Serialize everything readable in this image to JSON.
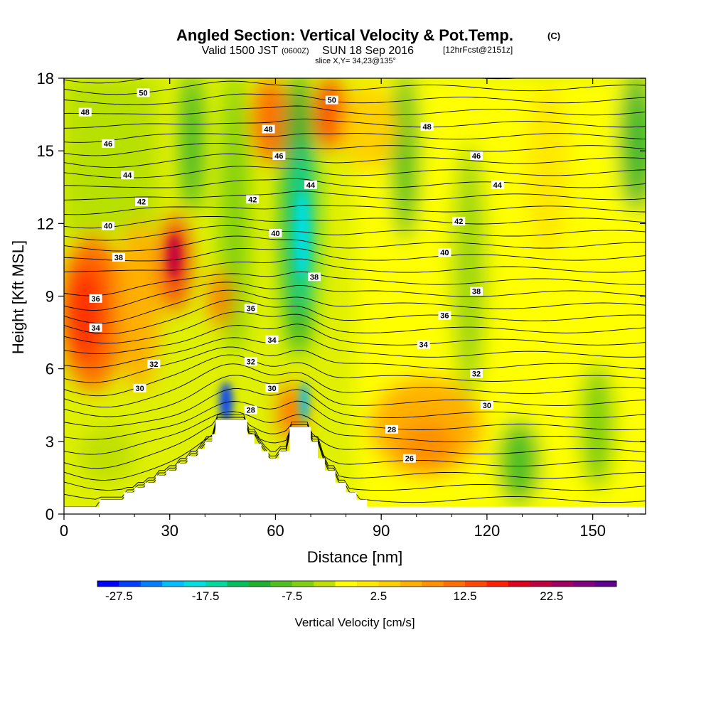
{
  "title": {
    "main": "Angled Section: Vertical Velocity & Pot.Temp.",
    "main_suffix": "(C)",
    "valid_prefix": "Valid 1500 JST",
    "valid_utc": "(0600Z)",
    "valid_date": "SUN 18 Sep 2016",
    "fcst": "[12hrFcst@2151z]",
    "slice": "slice X,Y= 34,23@135°"
  },
  "chart_data": {
    "type": "heatmap",
    "xlabel": "Distance [nm]",
    "ylabel": "Height [Kft MSL]",
    "xlim": [
      0,
      165
    ],
    "ylim": [
      0,
      18
    ],
    "x_ticks": [
      "0",
      "30",
      "60",
      "90",
      "120",
      "150"
    ],
    "y_ticks": [
      "0",
      "3",
      "6",
      "9",
      "12",
      "15",
      "18"
    ],
    "terrain": [
      [
        0,
        0.3
      ],
      [
        10,
        0.3
      ],
      [
        10,
        0.6
      ],
      [
        17,
        0.6
      ],
      [
        17,
        0.9
      ],
      [
        20,
        0.9
      ],
      [
        20,
        1.1
      ],
      [
        23,
        1.1
      ],
      [
        23,
        1.3
      ],
      [
        26,
        1.3
      ],
      [
        26,
        1.6
      ],
      [
        29,
        1.6
      ],
      [
        29,
        1.8
      ],
      [
        32,
        1.8
      ],
      [
        32,
        2.1
      ],
      [
        35,
        2.1
      ],
      [
        35,
        2.4
      ],
      [
        38,
        2.4
      ],
      [
        38,
        2.7
      ],
      [
        40,
        2.7
      ],
      [
        40,
        3.0
      ],
      [
        42,
        3.0
      ],
      [
        42,
        3.3
      ],
      [
        43,
        3.3
      ],
      [
        43,
        3.9
      ],
      [
        52,
        3.9
      ],
      [
        52,
        3.3
      ],
      [
        54,
        3.3
      ],
      [
        54,
        2.9
      ],
      [
        56,
        2.9
      ],
      [
        56,
        2.6
      ],
      [
        58,
        2.6
      ],
      [
        58,
        2.3
      ],
      [
        61,
        2.3
      ],
      [
        61,
        2.6
      ],
      [
        64,
        2.6
      ],
      [
        64,
        3.6
      ],
      [
        70,
        3.6
      ],
      [
        70,
        3.0
      ],
      [
        72,
        3.0
      ],
      [
        72,
        2.3
      ],
      [
        74,
        2.3
      ],
      [
        74,
        1.8
      ],
      [
        77,
        1.8
      ],
      [
        77,
        1.3
      ],
      [
        80,
        1.3
      ],
      [
        80,
        0.9
      ],
      [
        83,
        0.9
      ],
      [
        83,
        0.6
      ],
      [
        86,
        0.6
      ],
      [
        86,
        0.3
      ],
      [
        165,
        0.3
      ]
    ],
    "theta_labels": [
      {
        "text": "50",
        "x": 22.5,
        "y": 17.4
      },
      {
        "text": "48",
        "x": 6,
        "y": 16.6
      },
      {
        "text": "46",
        "x": 12.5,
        "y": 15.3
      },
      {
        "text": "44",
        "x": 18,
        "y": 14
      },
      {
        "text": "42",
        "x": 22,
        "y": 12.9
      },
      {
        "text": "40",
        "x": 12.5,
        "y": 11.9
      },
      {
        "text": "38",
        "x": 15.5,
        "y": 10.6
      },
      {
        "text": "36",
        "x": 9,
        "y": 8.9
      },
      {
        "text": "34",
        "x": 9,
        "y": 7.7
      },
      {
        "text": "32",
        "x": 25.5,
        "y": 6.2
      },
      {
        "text": "30",
        "x": 21.5,
        "y": 5.2
      },
      {
        "text": "48",
        "x": 58,
        "y": 15.9
      },
      {
        "text": "46",
        "x": 61,
        "y": 14.8
      },
      {
        "text": "44",
        "x": 70,
        "y": 13.6
      },
      {
        "text": "42",
        "x": 53.5,
        "y": 13
      },
      {
        "text": "40",
        "x": 60,
        "y": 11.6
      },
      {
        "text": "38",
        "x": 71,
        "y": 9.8
      },
      {
        "text": "36",
        "x": 53,
        "y": 8.5
      },
      {
        "text": "34",
        "x": 59,
        "y": 7.2
      },
      {
        "text": "32",
        "x": 53,
        "y": 6.3
      },
      {
        "text": "30",
        "x": 59,
        "y": 5.2
      },
      {
        "text": "28",
        "x": 53,
        "y": 4.3
      },
      {
        "text": "50",
        "x": 76,
        "y": 17.1
      },
      {
        "text": "48",
        "x": 103,
        "y": 16
      },
      {
        "text": "46",
        "x": 117,
        "y": 14.8
      },
      {
        "text": "44",
        "x": 123,
        "y": 13.6
      },
      {
        "text": "42",
        "x": 112,
        "y": 12.1
      },
      {
        "text": "40",
        "x": 108,
        "y": 10.8
      },
      {
        "text": "38",
        "x": 117,
        "y": 9.2
      },
      {
        "text": "36",
        "x": 108,
        "y": 8.2
      },
      {
        "text": "34",
        "x": 102,
        "y": 7.0
      },
      {
        "text": "32",
        "x": 117,
        "y": 5.8
      },
      {
        "text": "30",
        "x": 120,
        "y": 4.5
      },
      {
        "text": "28",
        "x": 93,
        "y": 3.5
      },
      {
        "text": "26",
        "x": 98,
        "y": 2.3
      }
    ],
    "color_scale": {
      "ticks": [
        "-27.5",
        "-17.5",
        "-7.5",
        "2.5",
        "12.5",
        "22.5"
      ],
      "tick_values": [
        -27.5,
        -17.5,
        -7.5,
        2.5,
        12.5,
        22.5
      ],
      "range": [
        -30,
        30
      ],
      "label": "Vertical Velocity [cm/s]",
      "colors": [
        "#0000ff",
        "#0040ff",
        "#0080ff",
        "#00bfff",
        "#00dfe0",
        "#00d9a0",
        "#00c060",
        "#20b030",
        "#50c020",
        "#80d010",
        "#c0e000",
        "#ffff00",
        "#ffe800",
        "#ffd000",
        "#ffb000",
        "#ff9000",
        "#ff7000",
        "#ff4800",
        "#ff2000",
        "#e00020",
        "#c00040",
        "#a00060",
        "#800080",
        "#600090"
      ]
    }
  }
}
